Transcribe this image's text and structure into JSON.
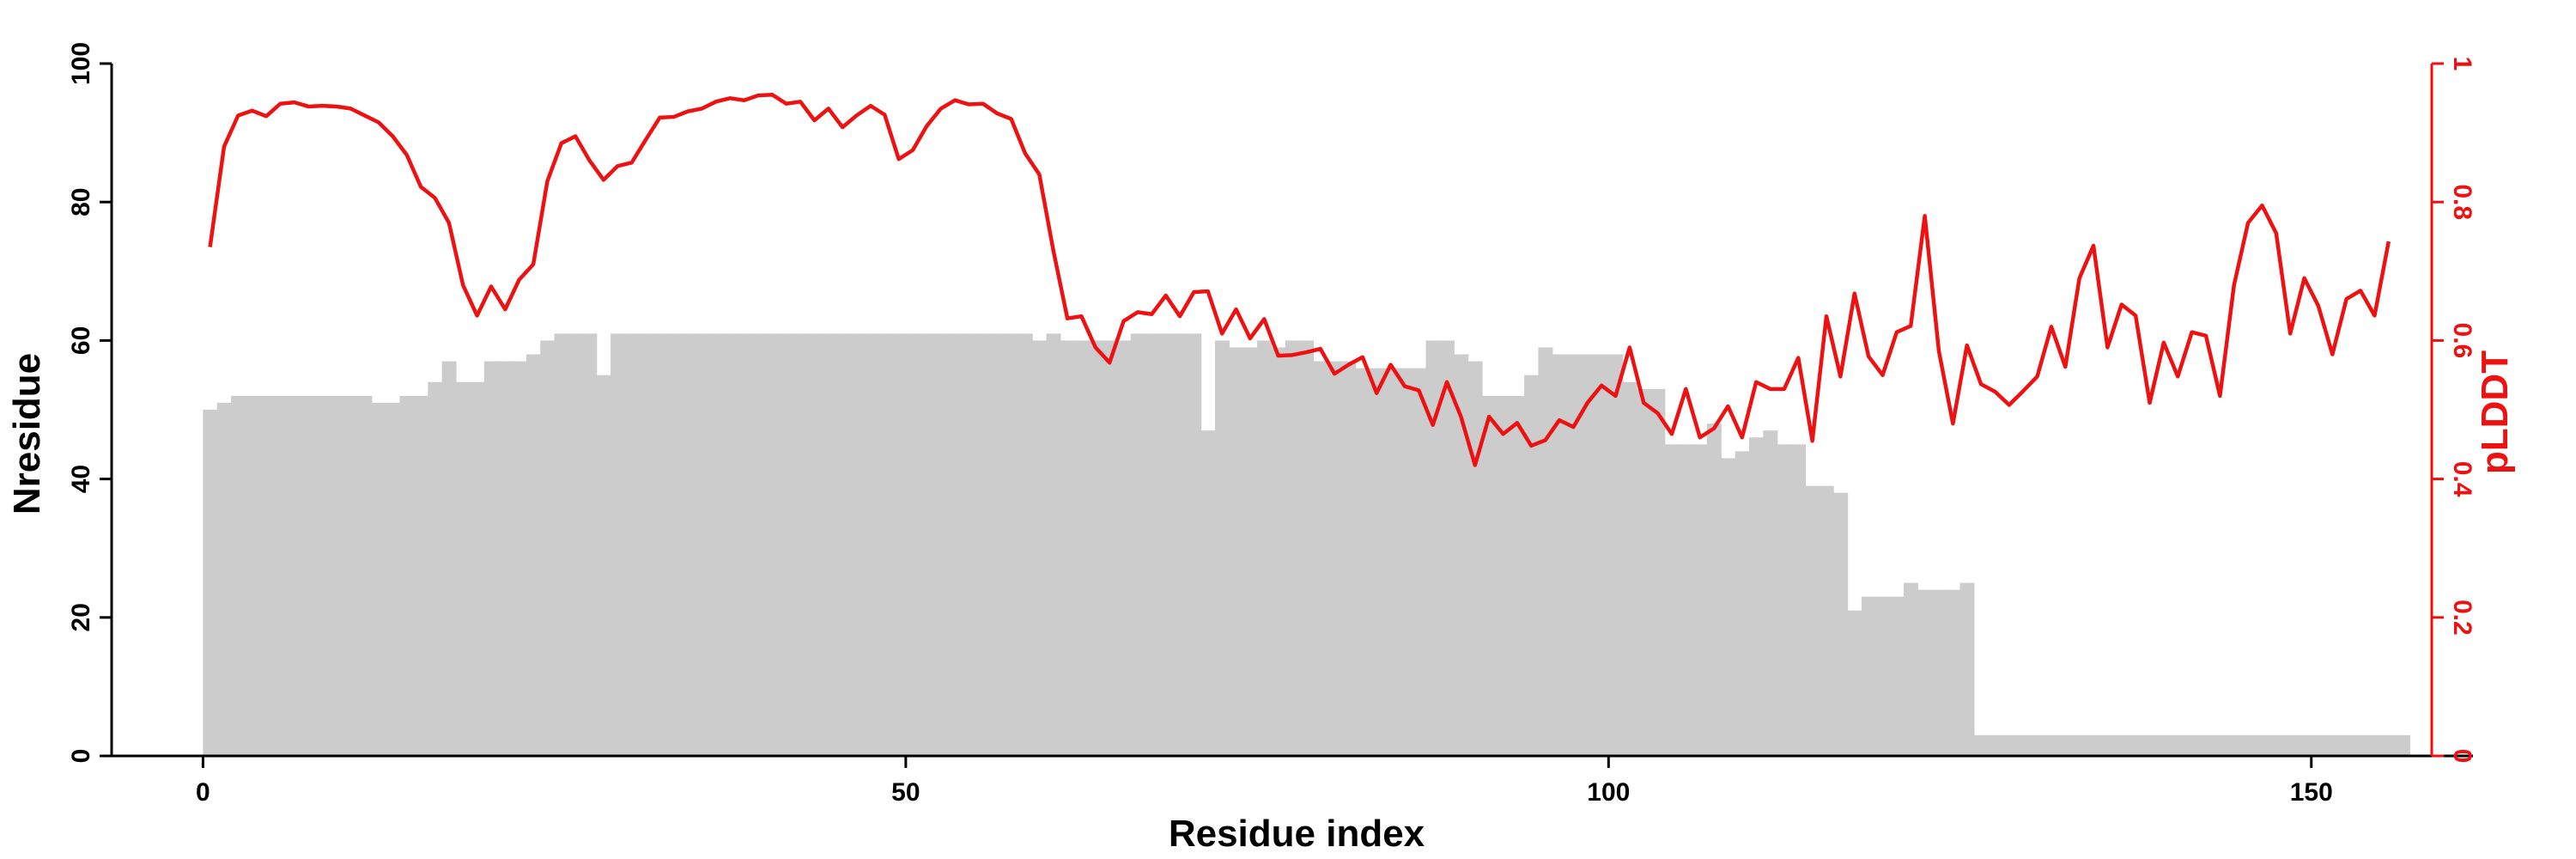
{
  "chart_data": {
    "type": "bar+line",
    "xlabel": "Residue index",
    "ylabel": "Nresidue",
    "y2label": "pLDDT",
    "xlim": [
      -6.5,
      161.5
    ],
    "ylim": [
      0,
      100
    ],
    "y2lim": [
      0,
      1
    ],
    "xticks": [
      0,
      50,
      100,
      150
    ],
    "yticks": [
      0,
      20,
      40,
      60,
      80,
      100
    ],
    "y2ticks": [
      0,
      0.2,
      0.4,
      0.6,
      0.8,
      1
    ],
    "y2tick_labels": [
      "0",
      "0.2",
      "0.4",
      "0.6",
      "0.8",
      "1"
    ],
    "grid": false,
    "colors": {
      "bars": "#cccccc",
      "line": "#ee1111",
      "axis": "#000000"
    },
    "series": [
      {
        "type": "bar",
        "x_start": 0,
        "values": [
          50,
          51,
          52,
          52,
          52,
          52,
          52,
          52,
          52,
          52,
          52,
          52,
          51,
          51,
          52,
          52,
          54,
          57,
          54,
          54,
          57,
          57,
          57,
          58,
          60,
          61,
          61,
          61,
          55,
          61,
          61,
          61,
          61,
          61,
          61,
          61,
          61,
          61,
          61,
          61,
          61,
          61,
          61,
          61,
          61,
          61,
          61,
          61,
          61,
          61,
          61,
          61,
          61,
          61,
          61,
          61,
          61,
          61,
          61,
          60,
          61,
          60,
          60,
          60,
          60,
          60,
          61,
          61,
          61,
          61,
          61,
          47,
          60,
          59,
          59,
          60,
          59,
          60,
          60,
          57,
          57,
          57,
          56,
          56,
          56,
          56,
          56,
          60,
          60,
          58,
          57,
          52,
          52,
          52,
          55,
          59,
          58,
          58,
          58,
          58,
          58,
          54,
          53,
          53,
          45,
          45,
          45,
          48,
          43,
          44,
          46,
          47,
          45,
          45,
          39,
          39,
          38,
          21,
          23,
          23,
          23,
          25,
          24,
          24,
          24,
          25,
          3,
          3,
          3,
          3,
          3,
          3,
          3,
          3,
          3,
          3,
          3,
          3,
          3,
          3,
          3,
          3,
          3,
          3,
          3,
          3,
          3,
          3,
          3,
          3,
          3,
          3,
          3,
          3,
          3,
          3,
          3
        ]
      },
      {
        "type": "line",
        "axis": "y2",
        "x_start": 0.5,
        "values": [
          0.735,
          0.88,
          0.925,
          0.932,
          0.924,
          0.942,
          0.944,
          0.938,
          0.939,
          0.938,
          0.935,
          0.925,
          0.915,
          0.895,
          0.868,
          0.822,
          0.806,
          0.77,
          0.68,
          0.636,
          0.678,
          0.645,
          0.688,
          0.71,
          0.83,
          0.885,
          0.895,
          0.86,
          0.832,
          0.852,
          0.857,
          0.89,
          0.922,
          0.923,
          0.931,
          0.935,
          0.945,
          0.95,
          0.947,
          0.954,
          0.955,
          0.942,
          0.945,
          0.918,
          0.935,
          0.908,
          0.925,
          0.939,
          0.926,
          0.862,
          0.875,
          0.91,
          0.935,
          0.947,
          0.941,
          0.942,
          0.928,
          0.92,
          0.87,
          0.84,
          0.73,
          0.632,
          0.635,
          0.59,
          0.568,
          0.628,
          0.641,
          0.638,
          0.665,
          0.635,
          0.67,
          0.671,
          0.61,
          0.645,
          0.603,
          0.631,
          0.578,
          0.579,
          0.583,
          0.588,
          0.552,
          0.565,
          0.576,
          0.524,
          0.565,
          0.534,
          0.528,
          0.478,
          0.54,
          0.49,
          0.42,
          0.49,
          0.465,
          0.481,
          0.448,
          0.456,
          0.485,
          0.475,
          0.51,
          0.535,
          0.52,
          0.59,
          0.51,
          0.495,
          0.465,
          0.53,
          0.46,
          0.473,
          0.505,
          0.46,
          0.54,
          0.53,
          0.53,
          0.575,
          0.455,
          0.635,
          0.548,
          0.668,
          0.577,
          0.55,
          0.612,
          0.621,
          0.78,
          0.585,
          0.48,
          0.593,
          0.537,
          0.526,
          0.507,
          0.527,
          0.548,
          0.62,
          0.562,
          0.69,
          0.737,
          0.59,
          0.652,
          0.636,
          0.51,
          0.597,
          0.548,
          0.612,
          0.607,
          0.52,
          0.68,
          0.77,
          0.795,
          0.755,
          0.61,
          0.69,
          0.65,
          0.58,
          0.66,
          0.672,
          0.636,
          0.743
        ]
      }
    ]
  }
}
